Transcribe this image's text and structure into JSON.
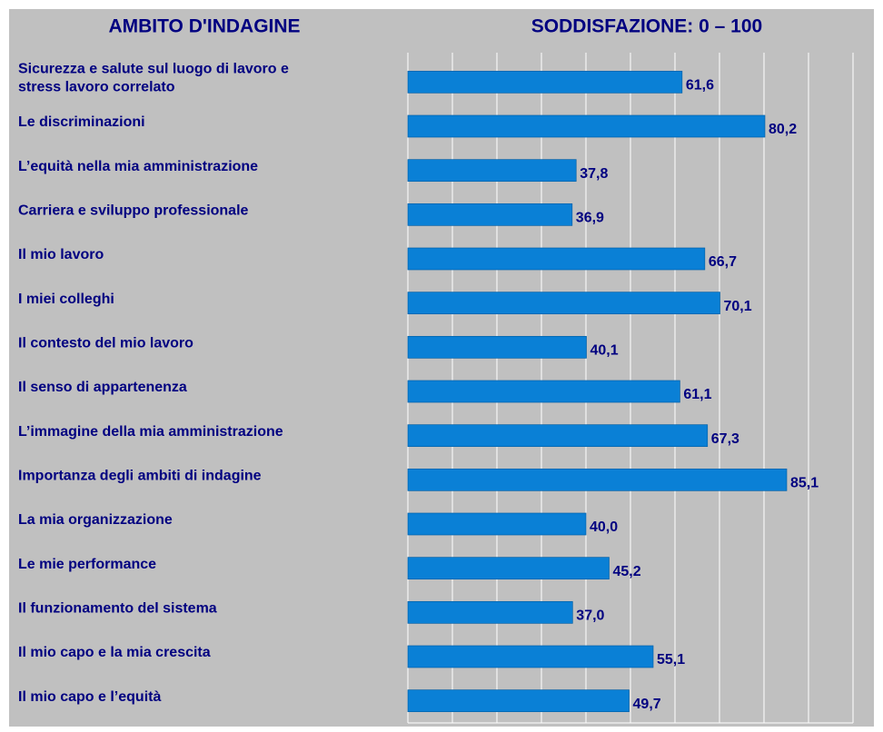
{
  "chart_data": {
    "type": "bar",
    "orientation": "horizontal",
    "column_headers": [
      "AMBITO D'INDAGINE",
      "SODDISFAZIONE: 0 – 100"
    ],
    "categories": [
      "Sicurezza e salute sul luogo di lavoro e\nstress lavoro correlato",
      "Le discriminazioni",
      "L’equità nella mia amministrazione",
      "Carriera e sviluppo professionale",
      "Il mio lavoro",
      "I miei colleghi",
      "Il contesto del mio lavoro",
      "Il senso di appartenenza",
      "L’immagine della mia amministrazione",
      "Importanza degli ambiti di indagine",
      "La mia organizzazione",
      "Le mie performance",
      "Il funzionamento del sistema",
      "Il mio capo e la mia crescita",
      "Il mio capo e l’equità"
    ],
    "values": [
      61.6,
      80.2,
      37.8,
      36.9,
      66.7,
      70.1,
      40.1,
      61.1,
      67.3,
      85.1,
      40.0,
      45.2,
      37.0,
      55.1,
      49.7
    ],
    "value_labels": [
      "61,6",
      "80,2",
      "37,8",
      "36,9",
      "66,7",
      "70,1",
      "40,1",
      "61,1",
      "67,3",
      "85,1",
      "40,0",
      "45,2",
      "37,0",
      "55,1",
      "49,7"
    ],
    "color": "#0a80d6",
    "xlim": [
      0,
      100
    ],
    "xticks": [
      0,
      10,
      20,
      30,
      40,
      50,
      60,
      70,
      80,
      90,
      100
    ],
    "grid": true
  }
}
